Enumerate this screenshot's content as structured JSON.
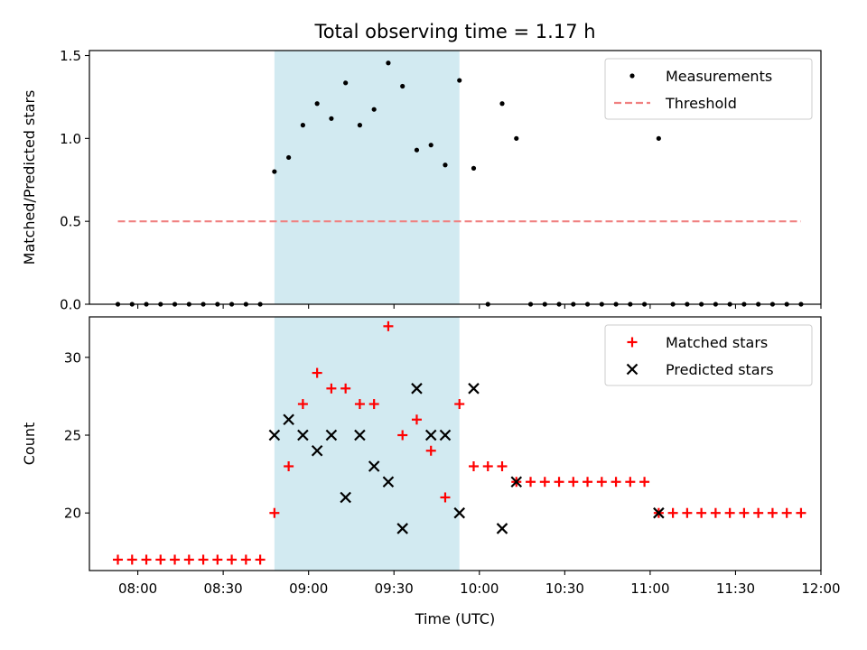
{
  "chart_data": [
    {
      "type": "scatter",
      "title": "Total observing time = 1.17 h",
      "ylabel": "Matched/Predicted stars",
      "xlabel": "",
      "xlim": [
        "07:43",
        "12:00"
      ],
      "ylim": [
        0,
        1.53
      ],
      "yticks": [
        0.0,
        0.5,
        1.0,
        1.5
      ],
      "ytick_labels": [
        "0.0",
        "0.5",
        "1.0",
        "1.5"
      ],
      "shaded_region": {
        "x_start": "08:48",
        "x_end": "09:53",
        "color": "#add8e6"
      },
      "legend": {
        "placement": "top-right",
        "entries": [
          "Measurements",
          "Threshold"
        ]
      },
      "series": [
        {
          "name": "Measurements",
          "marker": "dot",
          "color": "#000000",
          "points": [
            [
              "07:53",
              0
            ],
            [
              "07:58",
              0
            ],
            [
              "08:03",
              0
            ],
            [
              "08:08",
              0
            ],
            [
              "08:13",
              0
            ],
            [
              "08:18",
              0
            ],
            [
              "08:23",
              0
            ],
            [
              "08:28",
              0
            ],
            [
              "08:33",
              0
            ],
            [
              "08:38",
              0
            ],
            [
              "08:43",
              0
            ],
            [
              "08:48",
              0.8
            ],
            [
              "08:53",
              0.885
            ],
            [
              "08:58",
              1.08
            ],
            [
              "09:03",
              1.21
            ],
            [
              "09:08",
              1.12
            ],
            [
              "09:13",
              1.335
            ],
            [
              "09:18",
              1.08
            ],
            [
              "09:23",
              1.175
            ],
            [
              "09:28",
              1.455
            ],
            [
              "09:33",
              1.315
            ],
            [
              "09:38",
              0.93
            ],
            [
              "09:43",
              0.96
            ],
            [
              "09:48",
              0.84
            ],
            [
              "09:53",
              1.35
            ],
            [
              "09:58",
              0.82
            ],
            [
              "10:03",
              0
            ],
            [
              "10:08",
              1.21
            ],
            [
              "10:13",
              1.0
            ],
            [
              "10:18",
              0
            ],
            [
              "10:23",
              0
            ],
            [
              "10:28",
              0
            ],
            [
              "10:33",
              0
            ],
            [
              "10:38",
              0
            ],
            [
              "10:43",
              0
            ],
            [
              "10:48",
              0
            ],
            [
              "10:53",
              0
            ],
            [
              "10:58",
              0
            ],
            [
              "11:03",
              1.0
            ],
            [
              "11:08",
              0
            ],
            [
              "11:13",
              0
            ],
            [
              "11:18",
              0
            ],
            [
              "11:23",
              0
            ],
            [
              "11:28",
              0
            ],
            [
              "11:33",
              0
            ],
            [
              "11:38",
              0
            ],
            [
              "11:43",
              0
            ],
            [
              "11:48",
              0
            ],
            [
              "11:53",
              0
            ]
          ]
        },
        {
          "name": "Threshold",
          "type": "line",
          "style": "dashed",
          "color": "#f08080",
          "points": [
            [
              "07:53",
              0.5
            ],
            [
              "11:53",
              0.5
            ]
          ]
        }
      ]
    },
    {
      "type": "scatter",
      "title": "",
      "ylabel": "Count",
      "xlabel": "Time (UTC)",
      "xlim": [
        "07:43",
        "12:00"
      ],
      "ylim": [
        16.3,
        32.6
      ],
      "yticks": [
        20,
        25,
        30
      ],
      "ytick_labels": [
        "20",
        "25",
        "30"
      ],
      "xticks": [
        "08:00",
        "08:30",
        "09:00",
        "09:30",
        "10:00",
        "10:30",
        "11:00",
        "11:30",
        "12:00"
      ],
      "shaded_region": {
        "x_start": "08:48",
        "x_end": "09:53",
        "color": "#add8e6"
      },
      "legend": {
        "placement": "top-right",
        "entries": [
          "Matched stars",
          "Predicted stars"
        ]
      },
      "series": [
        {
          "name": "Matched stars",
          "marker": "plus",
          "color": "#ff0000",
          "points": [
            [
              "07:53",
              17
            ],
            [
              "07:58",
              17
            ],
            [
              "08:03",
              17
            ],
            [
              "08:08",
              17
            ],
            [
              "08:13",
              17
            ],
            [
              "08:18",
              17
            ],
            [
              "08:23",
              17
            ],
            [
              "08:28",
              17
            ],
            [
              "08:33",
              17
            ],
            [
              "08:38",
              17
            ],
            [
              "08:43",
              17
            ],
            [
              "08:48",
              20
            ],
            [
              "08:53",
              23
            ],
            [
              "08:58",
              27
            ],
            [
              "09:03",
              29
            ],
            [
              "09:08",
              28
            ],
            [
              "09:13",
              28
            ],
            [
              "09:18",
              27
            ],
            [
              "09:23",
              27
            ],
            [
              "09:28",
              32
            ],
            [
              "09:33",
              25
            ],
            [
              "09:38",
              26
            ],
            [
              "09:43",
              24
            ],
            [
              "09:48",
              21
            ],
            [
              "09:53",
              27
            ],
            [
              "09:58",
              23
            ],
            [
              "10:03",
              23
            ],
            [
              "10:08",
              23
            ],
            [
              "10:13",
              22
            ],
            [
              "10:18",
              22
            ],
            [
              "10:23",
              22
            ],
            [
              "10:28",
              22
            ],
            [
              "10:33",
              22
            ],
            [
              "10:38",
              22
            ],
            [
              "10:43",
              22
            ],
            [
              "10:48",
              22
            ],
            [
              "10:53",
              22
            ],
            [
              "10:58",
              22
            ],
            [
              "11:03",
              20
            ],
            [
              "11:08",
              20
            ],
            [
              "11:13",
              20
            ],
            [
              "11:18",
              20
            ],
            [
              "11:23",
              20
            ],
            [
              "11:28",
              20
            ],
            [
              "11:33",
              20
            ],
            [
              "11:38",
              20
            ],
            [
              "11:43",
              20
            ],
            [
              "11:48",
              20
            ],
            [
              "11:53",
              20
            ]
          ]
        },
        {
          "name": "Predicted stars",
          "marker": "x",
          "color": "#000000",
          "points": [
            [
              "08:48",
              25
            ],
            [
              "08:53",
              26
            ],
            [
              "08:58",
              25
            ],
            [
              "09:03",
              24
            ],
            [
              "09:08",
              25
            ],
            [
              "09:13",
              21
            ],
            [
              "09:18",
              25
            ],
            [
              "09:23",
              23
            ],
            [
              "09:28",
              22
            ],
            [
              "09:33",
              19
            ],
            [
              "09:38",
              28
            ],
            [
              "09:43",
              25
            ],
            [
              "09:48",
              25
            ],
            [
              "09:53",
              20
            ],
            [
              "09:58",
              28
            ],
            [
              "10:08",
              19
            ],
            [
              "10:13",
              22
            ],
            [
              "11:03",
              20
            ]
          ]
        }
      ]
    }
  ]
}
